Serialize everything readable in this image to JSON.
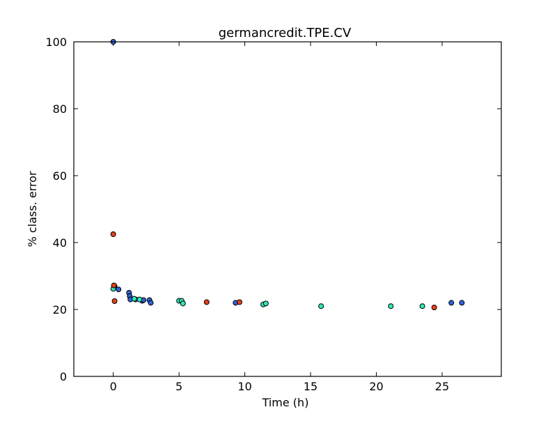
{
  "chart_data": {
    "type": "scatter",
    "title": "germancredit.TPE.CV",
    "xlabel": "Time (h)",
    "ylabel": "% class. error",
    "xlim": [
      -3,
      29.5
    ],
    "ylim": [
      0,
      100
    ],
    "xticks": [
      0,
      5,
      10,
      15,
      20,
      25
    ],
    "yticks": [
      0,
      20,
      40,
      60,
      80,
      100
    ],
    "grid": false,
    "colors": {
      "blue": "#2f63d7",
      "teal": "#2ee8b8",
      "red": "#e8411a",
      "edge": "#000000"
    },
    "series": [
      {
        "name": "blue",
        "points": [
          {
            "x": 0.0,
            "y": 100.0
          },
          {
            "x": 0.1,
            "y": 27.0
          },
          {
            "x": 0.4,
            "y": 26.0
          },
          {
            "x": 1.2,
            "y": 25.0
          },
          {
            "x": 1.25,
            "y": 24.0
          },
          {
            "x": 1.3,
            "y": 23.0
          },
          {
            "x": 1.7,
            "y": 23.0
          },
          {
            "x": 2.2,
            "y": 22.6
          },
          {
            "x": 2.3,
            "y": 22.8
          },
          {
            "x": 2.75,
            "y": 22.8
          },
          {
            "x": 2.85,
            "y": 22.0
          },
          {
            "x": 9.3,
            "y": 22.0
          },
          {
            "x": 25.7,
            "y": 22.0
          },
          {
            "x": 26.5,
            "y": 22.0
          }
        ]
      },
      {
        "name": "teal",
        "points": [
          {
            "x": 0.0,
            "y": 26.2
          },
          {
            "x": 1.6,
            "y": 23.2
          },
          {
            "x": 2.0,
            "y": 23.0
          },
          {
            "x": 5.0,
            "y": 22.6
          },
          {
            "x": 5.2,
            "y": 22.6
          },
          {
            "x": 5.3,
            "y": 21.8
          },
          {
            "x": 11.4,
            "y": 21.5
          },
          {
            "x": 11.6,
            "y": 21.8
          },
          {
            "x": 15.8,
            "y": 21.0
          },
          {
            "x": 21.1,
            "y": 21.0
          },
          {
            "x": 23.5,
            "y": 21.0
          }
        ]
      },
      {
        "name": "red",
        "points": [
          {
            "x": 0.0,
            "y": 42.5
          },
          {
            "x": 0.05,
            "y": 27.2
          },
          {
            "x": 0.1,
            "y": 22.5
          },
          {
            "x": 7.1,
            "y": 22.2
          },
          {
            "x": 9.6,
            "y": 22.2
          },
          {
            "x": 24.4,
            "y": 20.6
          }
        ]
      }
    ]
  }
}
